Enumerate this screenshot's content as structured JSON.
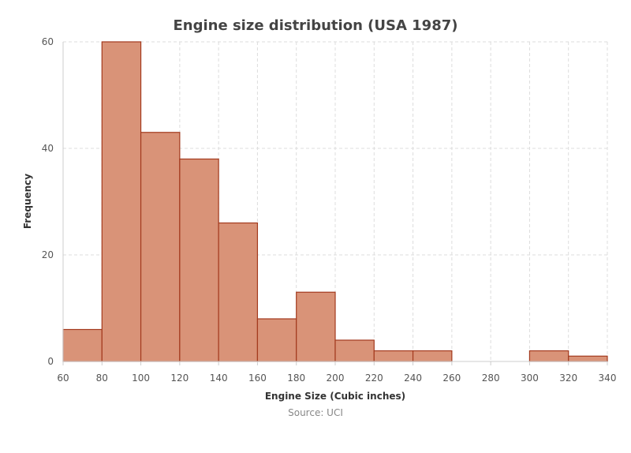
{
  "chart_data": {
    "type": "bar",
    "title": "Engine size distribution (USA 1987)",
    "xlabel": "Engine Size (Cubic inches)",
    "ylabel": "Frequency",
    "source": "Source: UCI",
    "xlim": [
      60,
      340
    ],
    "ylim": [
      0,
      60
    ],
    "x_ticks": [
      60,
      80,
      100,
      120,
      140,
      160,
      180,
      200,
      220,
      240,
      260,
      280,
      300,
      320,
      340
    ],
    "y_ticks": [
      0,
      20,
      40,
      60
    ],
    "grid": true,
    "bins": [
      {
        "from": 60,
        "to": 80,
        "value": 6
      },
      {
        "from": 80,
        "to": 100,
        "value": 60
      },
      {
        "from": 100,
        "to": 120,
        "value": 43
      },
      {
        "from": 120,
        "to": 140,
        "value": 38
      },
      {
        "from": 140,
        "to": 160,
        "value": 26
      },
      {
        "from": 160,
        "to": 180,
        "value": 8
      },
      {
        "from": 180,
        "to": 200,
        "value": 13
      },
      {
        "from": 200,
        "to": 220,
        "value": 4
      },
      {
        "from": 220,
        "to": 240,
        "value": 2
      },
      {
        "from": 240,
        "to": 260,
        "value": 2
      },
      {
        "from": 300,
        "to": 320,
        "value": 2
      },
      {
        "from": 320,
        "to": 340,
        "value": 1
      }
    ],
    "colors": {
      "bar_fill": "#d99378",
      "bar_stroke": "#a33a1e"
    }
  }
}
